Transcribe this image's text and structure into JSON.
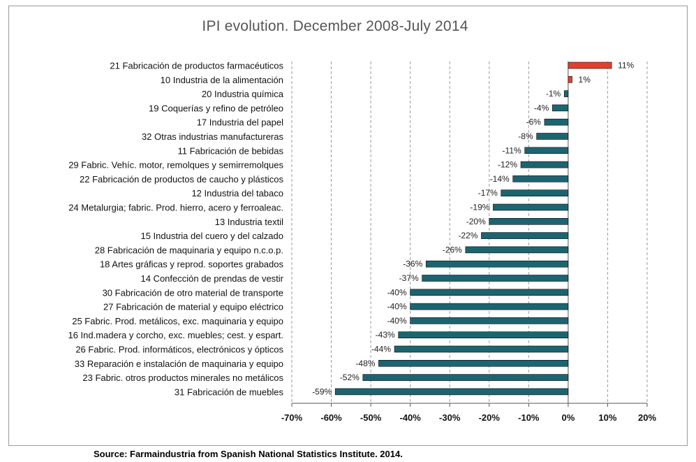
{
  "chart_data": {
    "type": "bar",
    "orientation": "horizontal",
    "title": "IPI evolution.  December 2008-July 2014",
    "categories": [
      "21 Fabricación de productos farmacéuticos",
      "10 Industria de la alimentación",
      "20 Industria química",
      "19 Coquerías y refino de petróleo",
      "17 Industria del papel",
      "32 Otras industrias manufactureras",
      "11 Fabricación de bebidas",
      "29 Fabric. Vehíc. motor, remolques y semirremolques",
      "22 Fabricación de productos de caucho y plásticos",
      "12 Industria del tabaco",
      "24 Metalurgia; fabric. Prod. hierro, acero y ferroaleac.",
      "13 Industria textil",
      "15 Industria del cuero y del calzado",
      "28 Fabricación de maquinaria y equipo n.c.o.p.",
      "18 Artes gráficas y reprod. soportes grabados",
      "14 Confección de prendas de vestir",
      "30 Fabricación de otro material de transporte",
      "27 Fabricación de material y equipo eléctrico",
      "25 Fabric. Prod. metálicos, exc. maquinaria y equipo",
      "16 Ind.madera y corcho, exc. muebles; cest. y espart.",
      "26 Fabric. Prod. informáticos, electrónicos y ópticos",
      "33 Reparación e instalación de maquinaria y equipo",
      "23 Fabric. otros productos minerales no metálicos",
      "31 Fabricación de muebles"
    ],
    "values": [
      11,
      1,
      -1,
      -4,
      -6,
      -8,
      -11,
      -12,
      -14,
      -17,
      -19,
      -20,
      -22,
      -26,
      -36,
      -37,
      -40,
      -40,
      -40,
      -43,
      -44,
      -48,
      -52,
      -59
    ],
    "value_labels": [
      "11%",
      "1%",
      "-1%",
      "-4%",
      "-6%",
      "-8%",
      "-11%",
      "-12%",
      "-14%",
      "-17%",
      "-19%",
      "-20%",
      "-22%",
      "-26%",
      "-36%",
      "-37%",
      "-40%",
      "-40%",
      "-40%",
      "-43%",
      "-44%",
      "-48%",
      "-52%",
      "-59%"
    ],
    "xlim": [
      -70,
      20
    ],
    "xticks": [
      -70,
      -60,
      -50,
      -40,
      -30,
      -20,
      -10,
      0,
      10,
      20
    ],
    "xtick_labels": [
      "-70%",
      "-60%",
      "-50%",
      "-40%",
      "-30%",
      "-20%",
      "-10%",
      "0%",
      "10%",
      "20%"
    ],
    "grid": "vertical dashed",
    "colors": {
      "positive": "#e0412f",
      "negative": "#1c6470",
      "grid": "#9a9a9a",
      "axis": "#555555"
    }
  },
  "source": "Source: Farmaindustria from Spanish National Statistics Institute. 2014."
}
